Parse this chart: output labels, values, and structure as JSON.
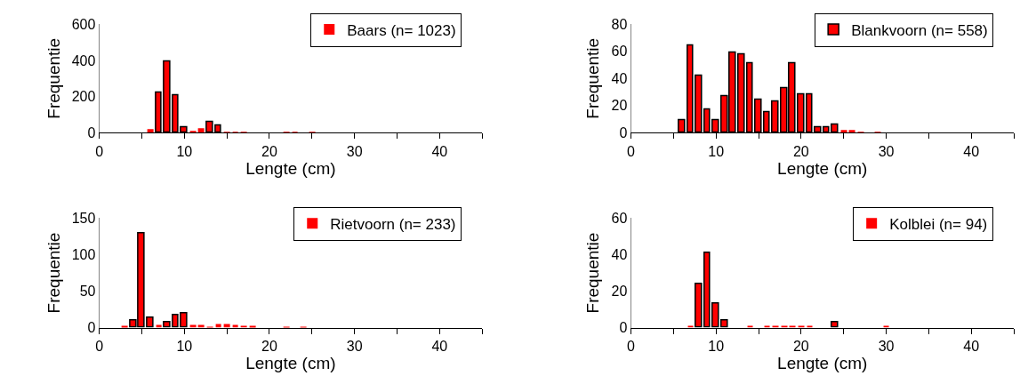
{
  "chart_data": [
    {
      "type": "bar",
      "xlabel": "Lengte (cm)",
      "ylabel": "Frequentie",
      "legend": "top right",
      "xlim": [
        0,
        45
      ],
      "xticks": [
        0,
        {
          "value": 5,
          "label": null
        },
        10,
        {
          "value": 15,
          "label": null
        },
        20,
        {
          "value": 25,
          "label": null
        },
        30,
        {
          "value": 35,
          "label": null
        },
        40,
        {
          "value": 45,
          "label": null
        }
      ],
      "ylim": [
        0,
        600
      ],
      "yticks": [
        0,
        200,
        400,
        600
      ],
      "x": [
        6,
        7,
        8,
        9,
        10,
        11,
        12,
        13,
        14,
        15,
        16,
        17,
        22,
        23,
        25
      ],
      "series": [
        {
          "name": "Baars (n= 1023)",
          "color": "#ff0000",
          "values": [
            20,
            222,
            393,
            208,
            32,
            11,
            25,
            58,
            41,
            5,
            2,
            2,
            2,
            2,
            2
          ]
        }
      ]
    },
    {
      "type": "bar",
      "xlabel": "Lengte (cm)",
      "ylabel": "Frequentie",
      "legend": "top right",
      "xlim": [
        0,
        45
      ],
      "xticks": [
        0,
        {
          "value": 5,
          "label": null
        },
        10,
        {
          "value": 15,
          "label": null
        },
        20,
        {
          "value": 25,
          "label": null
        },
        30,
        {
          "value": 35,
          "label": null
        },
        40,
        {
          "value": 45,
          "label": null
        }
      ],
      "ylim": [
        0,
        80
      ],
      "yticks": [
        0,
        20,
        40,
        60,
        80
      ],
      "x": [
        6,
        7,
        8,
        9,
        10,
        11,
        12,
        13,
        14,
        15,
        16,
        17,
        18,
        19,
        20,
        21,
        22,
        23,
        24,
        25,
        26,
        27,
        29
      ],
      "series": [
        {
          "name": "Blankvoorn (n= 558)",
          "color": "#ff0000",
          "values": [
            9,
            64,
            42,
            17,
            9,
            27,
            59,
            58,
            51,
            24,
            15,
            23,
            33,
            51,
            28,
            28,
            4,
            4,
            6,
            2,
            2,
            1,
            1
          ]
        }
      ]
    },
    {
      "type": "bar",
      "xlabel": "Lengte (cm)",
      "ylabel": "Frequentie",
      "legend": "top right",
      "xlim": [
        0,
        45
      ],
      "xticks": [
        0,
        {
          "value": 5,
          "label": null
        },
        10,
        {
          "value": 15,
          "label": null
        },
        20,
        {
          "value": 25,
          "label": null
        },
        30,
        {
          "value": 35,
          "label": null
        },
        40,
        {
          "value": 45,
          "label": null
        }
      ],
      "ylim": [
        0,
        150
      ],
      "yticks": [
        0,
        50,
        100,
        150
      ],
      "x": [
        3,
        4,
        5,
        6,
        7,
        8,
        9,
        10,
        11,
        12,
        13,
        14,
        15,
        16,
        17,
        18,
        22,
        24
      ],
      "series": [
        {
          "name": "Rietvoorn (n= 233)",
          "color": "#ff0000",
          "values": [
            2,
            10,
            129,
            14,
            4,
            8,
            17,
            19,
            4,
            4,
            1,
            5,
            5,
            4,
            3,
            2,
            1,
            1
          ]
        }
      ]
    },
    {
      "type": "bar",
      "xlabel": "Lengte (cm)",
      "ylabel": "Frequentie",
      "legend": "top right",
      "xlim": [
        0,
        45
      ],
      "xticks": [
        0,
        {
          "value": 5,
          "label": null
        },
        10,
        {
          "value": 15,
          "label": null
        },
        20,
        {
          "value": 25,
          "label": null
        },
        30,
        {
          "value": 35,
          "label": null
        },
        40,
        {
          "value": 45,
          "label": null
        }
      ],
      "ylim": [
        0,
        60
      ],
      "yticks": [
        0,
        20,
        40,
        60
      ],
      "x": [
        7,
        8,
        9,
        10,
        11,
        14,
        16,
        17,
        18,
        19,
        20,
        21,
        24,
        30
      ],
      "series": [
        {
          "name": "Kolblei (n= 94)",
          "color": "#ff0000",
          "values": [
            1,
            24,
            41,
            13,
            4,
            1,
            1,
            1,
            1,
            1,
            1,
            1,
            3,
            1
          ]
        }
      ]
    }
  ]
}
